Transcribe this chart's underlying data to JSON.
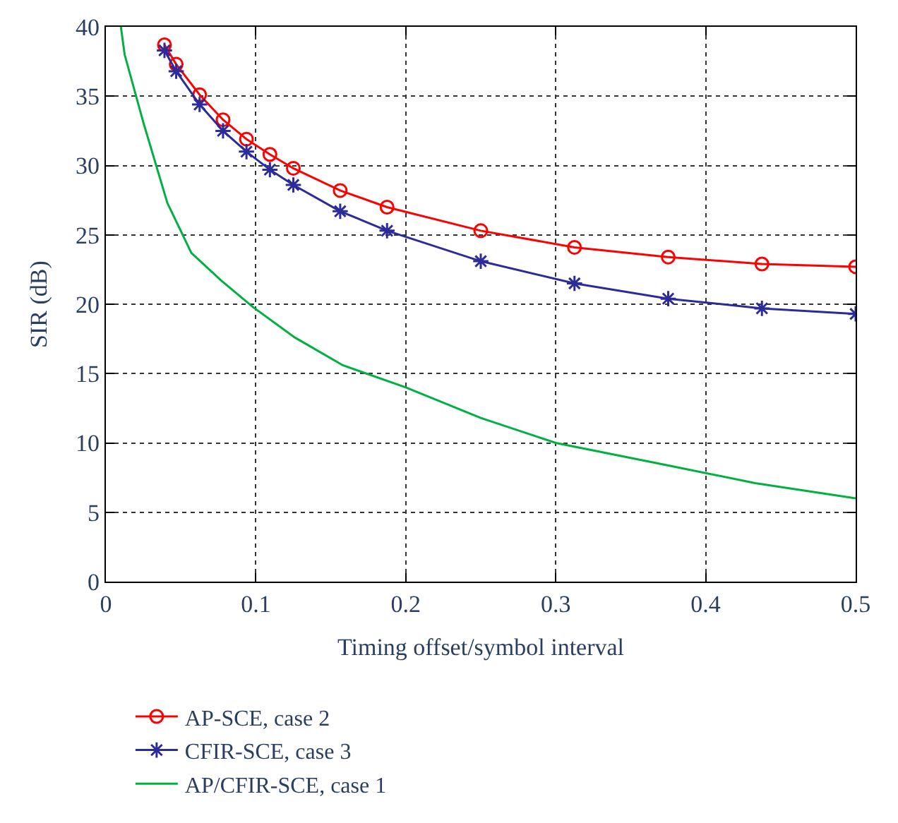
{
  "chart_data": {
    "type": "line",
    "xlabel": "Timing offset/symbol interval",
    "ylabel": "SIR (dB)",
    "xlim": [
      0,
      0.5
    ],
    "xticks": [
      0,
      0.1,
      0.2,
      0.3,
      0.4,
      0.5
    ],
    "ylim": [
      0,
      40
    ],
    "yticks": [
      0,
      5,
      10,
      15,
      20,
      25,
      30,
      35,
      40
    ],
    "grid": true,
    "legend": "bottom",
    "series": [
      {
        "name": "AP-SCE, case 2",
        "color": "#ff0000",
        "marker": "circle",
        "x": [
          0.0390625,
          0.046875,
          0.0625,
          0.078125,
          0.09375,
          0.109375,
          0.125,
          0.15625,
          0.1875,
          0.25,
          0.3125,
          0.375,
          0.4375,
          0.5
        ],
        "values": [
          38.7,
          37.3,
          35.1,
          33.3,
          31.9,
          30.8,
          29.8,
          28.2,
          27.0,
          25.3,
          24.1,
          23.4,
          22.9,
          22.7
        ]
      },
      {
        "name": "CFIR-SCE, case 3",
        "color": "#2b2b9a",
        "marker": "cross",
        "x": [
          0.0390625,
          0.046875,
          0.0625,
          0.078125,
          0.09375,
          0.109375,
          0.125,
          0.15625,
          0.1875,
          0.25,
          0.3125,
          0.375,
          0.4375,
          0.5
        ],
        "values": [
          38.3,
          36.8,
          34.4,
          32.5,
          31.0,
          29.7,
          28.6,
          26.7,
          25.3,
          23.1,
          21.5,
          20.4,
          19.7,
          19.3
        ]
      },
      {
        "name": "AP/CFIR-SCE, case 1",
        "color": "#00b040",
        "marker": "none",
        "x": [
          0.01,
          0.0125,
          0.025,
          0.041,
          0.057,
          0.077,
          0.098,
          0.126,
          0.158,
          0.2,
          0.25,
          0.3,
          0.374,
          0.433,
          0.5
        ],
        "values": [
          40,
          38,
          33.1,
          27.3,
          23.7,
          21.7,
          19.8,
          17.6,
          15.6,
          14.0,
          11.8,
          10.0,
          8.4,
          7.1,
          6.0
        ]
      }
    ]
  }
}
